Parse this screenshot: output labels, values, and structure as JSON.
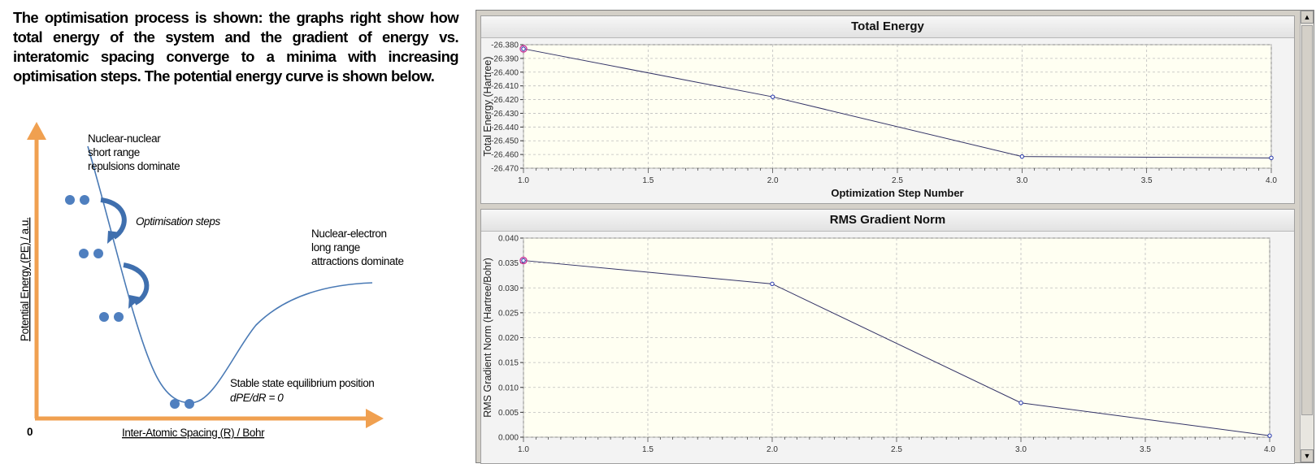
{
  "intro_text": "The optimisation process is shown: the graphs right show how total energy of the system and the gradient of energy vs. interatomic spacing converge to a minima with increasing optimisation steps. The potential energy curve is shown below.",
  "diagram": {
    "y_axis_title": "Potential Energy (PE) / a.u.",
    "x_axis_title": "Inter-Atomic Spacing (R) / Bohr",
    "origin_label": "0",
    "repulsion_label": [
      "Nuclear-nuclear",
      "short range",
      "repulsions dominate"
    ],
    "attraction_label": [
      "Nuclear-electron",
      "long range",
      "attractions dominate"
    ],
    "steps_label": "Optimisation steps",
    "equilibrium_label": "Stable state equilibrium position",
    "equilibrium_formula": "dPE/dR = 0",
    "colors": {
      "axis": "#f0a050",
      "curve": "#4a7ab5",
      "atom": "#4f7fbf",
      "arrow": "#3f6fae"
    }
  },
  "scrollbar": {
    "up_icon": "▲",
    "down_icon": "▼"
  },
  "chart_data": [
    {
      "type": "line",
      "title": "Total Energy",
      "xlabel": "Optimization Step Number",
      "ylabel": "Total Energy (Hartree)",
      "x": [
        1.0,
        2.0,
        3.0,
        4.0
      ],
      "values": [
        -26.383,
        -26.418,
        -26.4615,
        -26.4625
      ],
      "xlim": [
        1.0,
        4.0
      ],
      "ylim": [
        -26.47,
        -26.38
      ],
      "xticks": [
        "1.0",
        "1.5",
        "2.0",
        "2.5",
        "3.0",
        "3.5",
        "4.0"
      ],
      "yticks": [
        "-26.380",
        "-26.390",
        "-26.400",
        "-26.410",
        "-26.420",
        "-26.430",
        "-26.440",
        "-26.450",
        "-26.460",
        "-26.470"
      ],
      "grid": true,
      "colors": {
        "line": "#333366",
        "marker": "#2233aa",
        "highlight": "#cc3399",
        "plot_bg": "#fffff2",
        "grid": "#bdbdbd"
      }
    },
    {
      "type": "line",
      "title": "RMS Gradient Norm",
      "xlabel": "",
      "ylabel": "RMS Gradient Norm (Hartree/Bohr)",
      "x": [
        1.0,
        2.0,
        3.0,
        4.0
      ],
      "values": [
        0.0355,
        0.0308,
        0.0069,
        0.0003
      ],
      "xlim": [
        1.0,
        4.0
      ],
      "ylim": [
        0.0,
        0.04
      ],
      "xticks": [
        "1.0",
        "1.5",
        "2.0",
        "2.5",
        "3.0",
        "3.5",
        "4.0"
      ],
      "yticks": [
        "0.040",
        "0.035",
        "0.030",
        "0.025",
        "0.020",
        "0.015",
        "0.010",
        "0.005",
        "0.000"
      ],
      "grid": true,
      "colors": {
        "line": "#333366",
        "marker": "#2233aa",
        "highlight": "#cc3399",
        "plot_bg": "#fffff2",
        "grid": "#bdbdbd"
      }
    }
  ]
}
